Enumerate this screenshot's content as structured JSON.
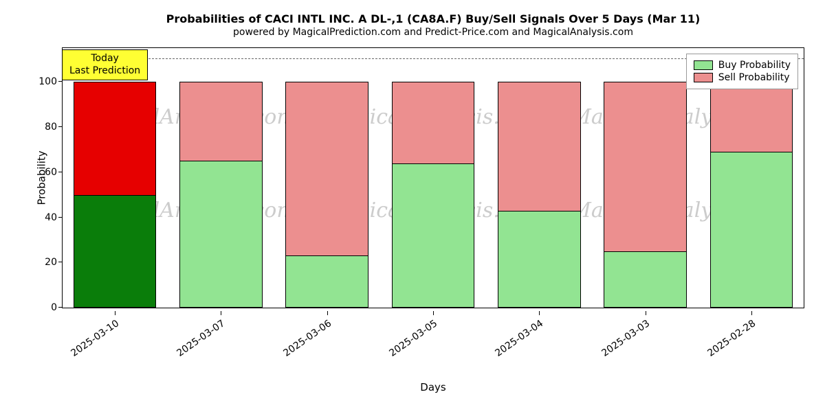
{
  "chart": {
    "type": "stacked-bar",
    "title": "Probabilities of CACI INTL INC. A  DL-,1 (CA8A.F) Buy/Sell Signals Over 5 Days (Mar 11)",
    "title_fontsize": 16,
    "title_fontweight": "bold",
    "subtitle": "powered by MagicalPrediction.com and Predict-Price.com and MagicalAnalysis.com",
    "subtitle_fontsize": 14,
    "background_color": "#ffffff",
    "border_color": "#000000",
    "watermark_text": "MagicalAnalysis.com",
    "watermark_color": "#cccccc",
    "watermark_fontsize": 30,
    "xlabel": "Days",
    "ylabel": "Probability",
    "label_fontsize": 15,
    "tick_fontsize": 14,
    "ylim_min": 0,
    "ylim_max": 115,
    "yticks": [
      0,
      20,
      40,
      60,
      80,
      100
    ],
    "dashed_ref_value": 110,
    "dashed_color": "#666666",
    "categories": [
      "2025-03-10",
      "2025-03-07",
      "2025-03-06",
      "2025-03-05",
      "2025-03-04",
      "2025-03-03",
      "2025-02-28"
    ],
    "bar_border_color": "#000000",
    "bar_width_ratio": 0.86,
    "bars": [
      {
        "buy": 50,
        "sell": 50,
        "buy_color": "#0a7d0a",
        "sell_color": "#e60000",
        "is_today": true
      },
      {
        "buy": 65,
        "sell": 35,
        "buy_color": "#92e492",
        "sell_color": "#ec8f8f",
        "is_today": false
      },
      {
        "buy": 23,
        "sell": 77,
        "buy_color": "#92e492",
        "sell_color": "#ec8f8f",
        "is_today": false
      },
      {
        "buy": 64,
        "sell": 36,
        "buy_color": "#92e492",
        "sell_color": "#ec8f8f",
        "is_today": false
      },
      {
        "buy": 43,
        "sell": 57,
        "buy_color": "#92e492",
        "sell_color": "#ec8f8f",
        "is_today": false
      },
      {
        "buy": 25,
        "sell": 75,
        "buy_color": "#92e492",
        "sell_color": "#ec8f8f",
        "is_today": false
      },
      {
        "buy": 69,
        "sell": 31,
        "buy_color": "#92e492",
        "sell_color": "#ec8f8f",
        "is_today": false
      }
    ],
    "today_label": {
      "line1": "Today",
      "line2": "Last Prediction",
      "background_color": "#ffff33",
      "fontsize": 14
    },
    "legend": {
      "items": [
        {
          "label": "Buy Probability",
          "color": "#92e492"
        },
        {
          "label": "Sell Probability",
          "color": "#ec8f8f"
        }
      ],
      "border_color": "#999999",
      "fontsize": 14
    }
  }
}
